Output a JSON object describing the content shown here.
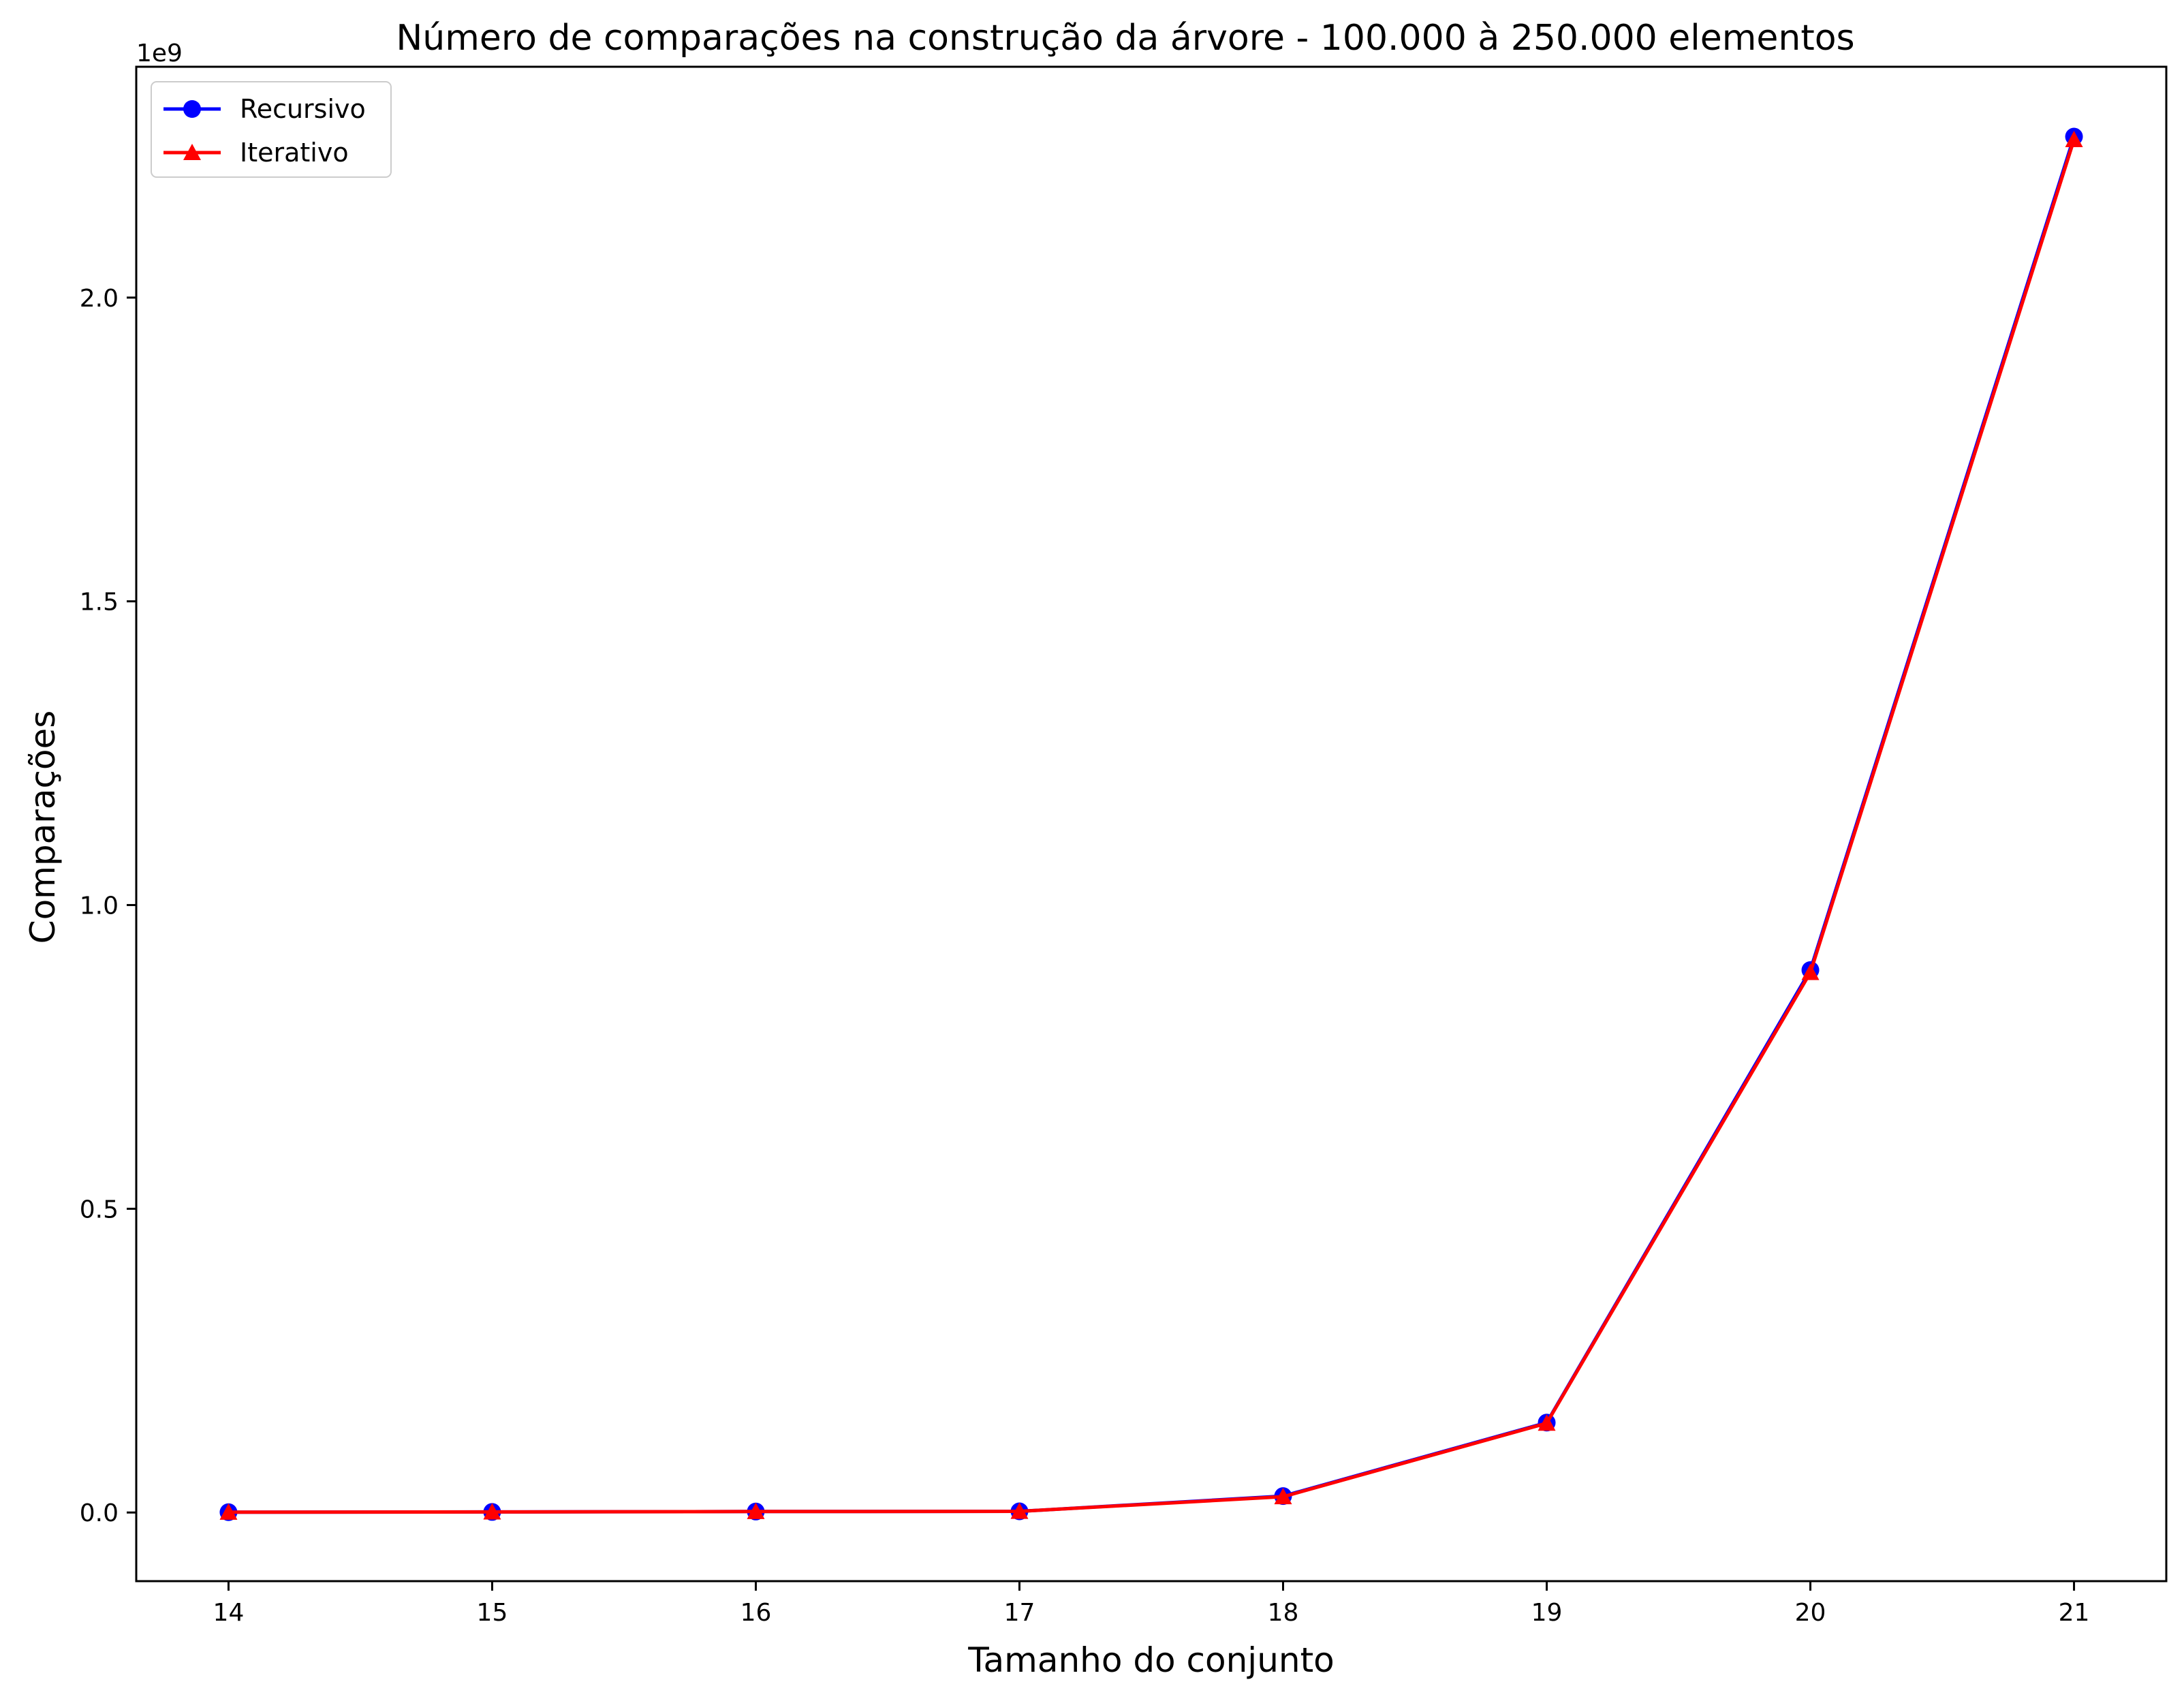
{
  "chart_data": {
    "type": "line",
    "title": "Número de comparações na construção da árvore - 100.000 à 250.000 elementos",
    "xlabel": "Tamanho do conjunto",
    "ylabel": "Comparações",
    "y_offset_label": "1e9",
    "x": [
      14,
      15,
      16,
      17,
      18,
      19,
      20,
      21
    ],
    "x_ticks": [
      "14",
      "15",
      "16",
      "17",
      "18",
      "19",
      "20",
      "21"
    ],
    "y_ticks": [
      {
        "value": 0.0,
        "label": "0.0"
      },
      {
        "value": 0.5,
        "label": "0.5"
      },
      {
        "value": 1.0,
        "label": "1.0"
      },
      {
        "value": 1.5,
        "label": "1.5"
      },
      {
        "value": 2.0,
        "label": "2.0"
      }
    ],
    "xlim": [
      13.65,
      21.35
    ],
    "ylim": [
      -0.113,
      2.38
    ],
    "grid": false,
    "legend_position": "upper-left",
    "series": [
      {
        "name": "Recursivo",
        "color": "#0000ff",
        "marker": "circle",
        "values": [
          0.0005,
          0.0009,
          0.0016,
          0.0019,
          0.027,
          0.148,
          0.893,
          2.265
        ]
      },
      {
        "name": "Iterativo",
        "color": "#ff0000",
        "marker": "triangle",
        "values": [
          0.0005,
          0.0009,
          0.0016,
          0.0019,
          0.026,
          0.147,
          0.889,
          2.26
        ]
      }
    ]
  }
}
